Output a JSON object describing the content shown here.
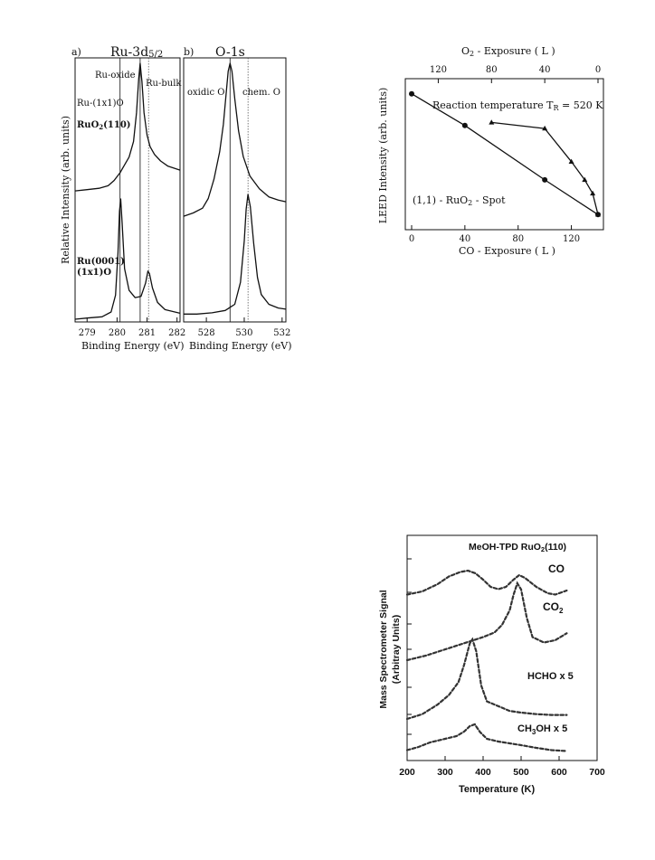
{
  "chart_data": [
    {
      "type": "line",
      "panel_label": "a)",
      "title": "Ru-3d",
      "title_sub": "5/2",
      "xlabel": "Binding Energy (eV)",
      "ylabel": "Relative Intensity (arb. units)",
      "xlim": [
        278.6,
        282.1
      ],
      "x_ticks": [
        "279",
        "280",
        "281",
        "282"
      ],
      "annotations": [
        "Ru-oxide",
        "Ru-bulk",
        "Ru-(1x1)O"
      ],
      "series": [
        {
          "name": "RuO",
          "name_sub": "2",
          "name_suffix": "(110)",
          "points": [
            [
              278.6,
              0.02
            ],
            [
              279.0,
              0.03
            ],
            [
              279.4,
              0.04
            ],
            [
              279.7,
              0.06
            ],
            [
              279.9,
              0.1
            ],
            [
              280.1,
              0.16
            ],
            [
              280.25,
              0.22
            ],
            [
              280.4,
              0.28
            ],
            [
              280.55,
              0.4
            ],
            [
              280.65,
              0.62
            ],
            [
              280.72,
              0.88
            ],
            [
              280.77,
              1.0
            ],
            [
              280.83,
              0.86
            ],
            [
              280.9,
              0.62
            ],
            [
              281.0,
              0.45
            ],
            [
              281.1,
              0.36
            ],
            [
              281.25,
              0.3
            ],
            [
              281.45,
              0.25
            ],
            [
              281.7,
              0.21
            ],
            [
              282.1,
              0.18
            ]
          ]
        },
        {
          "name": "Ru(0001)",
          "name_line2": "(1x1)O",
          "points": [
            [
              278.6,
              0.0
            ],
            [
              279.0,
              0.01
            ],
            [
              279.5,
              0.02
            ],
            [
              279.8,
              0.06
            ],
            [
              279.95,
              0.2
            ],
            [
              280.03,
              0.55
            ],
            [
              280.08,
              0.9
            ],
            [
              280.12,
              1.0
            ],
            [
              280.17,
              0.8
            ],
            [
              280.25,
              0.42
            ],
            [
              280.4,
              0.24
            ],
            [
              280.6,
              0.18
            ],
            [
              280.8,
              0.19
            ],
            [
              280.95,
              0.3
            ],
            [
              281.03,
              0.4
            ],
            [
              281.08,
              0.38
            ],
            [
              281.18,
              0.26
            ],
            [
              281.35,
              0.14
            ],
            [
              281.6,
              0.08
            ],
            [
              282.1,
              0.05
            ]
          ]
        }
      ]
    },
    {
      "type": "line",
      "panel_label": "b)",
      "title": "O-1s",
      "xlabel": "Binding Energy (eV)",
      "xlim": [
        526.8,
        532.2
      ],
      "x_ticks": [
        "528",
        "530",
        "532"
      ],
      "annotations": [
        "oxidic O",
        "chem. O"
      ],
      "series": [
        {
          "name": "RuO2(110)",
          "points": [
            [
              526.8,
              0.05
            ],
            [
              527.3,
              0.07
            ],
            [
              527.8,
              0.1
            ],
            [
              528.1,
              0.16
            ],
            [
              528.4,
              0.28
            ],
            [
              528.7,
              0.45
            ],
            [
              528.9,
              0.62
            ],
            [
              529.05,
              0.82
            ],
            [
              529.15,
              0.95
            ],
            [
              529.25,
              1.0
            ],
            [
              529.35,
              0.95
            ],
            [
              529.5,
              0.78
            ],
            [
              529.7,
              0.58
            ],
            [
              529.95,
              0.42
            ],
            [
              530.3,
              0.3
            ],
            [
              530.8,
              0.22
            ],
            [
              531.3,
              0.17
            ],
            [
              531.8,
              0.15
            ],
            [
              532.2,
              0.14
            ]
          ]
        },
        {
          "name": "Ru(0001)(1x1)O",
          "points": [
            [
              526.8,
              0.02
            ],
            [
              527.5,
              0.02
            ],
            [
              528.3,
              0.03
            ],
            [
              529.0,
              0.05
            ],
            [
              529.5,
              0.1
            ],
            [
              529.8,
              0.28
            ],
            [
              530.0,
              0.62
            ],
            [
              530.1,
              0.88
            ],
            [
              530.2,
              1.0
            ],
            [
              530.32,
              0.9
            ],
            [
              530.5,
              0.6
            ],
            [
              530.7,
              0.32
            ],
            [
              530.9,
              0.18
            ],
            [
              531.3,
              0.1
            ],
            [
              531.8,
              0.07
            ],
            [
              532.2,
              0.06
            ]
          ]
        }
      ]
    },
    {
      "type": "line",
      "xlabel": "CO - Exposure ( L )",
      "ylabel": "LEED Intensity (arb. units)",
      "xlabel_top": "O",
      "xlabel_top_sub": "2",
      "xlabel_top_suffix": " - Exposure ( L )",
      "xlim": [
        -5,
        150
      ],
      "x_ticks": [
        0,
        40,
        80,
        120
      ],
      "x_top_ticks": [
        120,
        80,
        40,
        0
      ],
      "ylim": [
        0,
        1
      ],
      "annotation_main": "Reaction temperature T",
      "annotation_main_sub": "R",
      "annotation_main_suffix": " = 520 K",
      "annotation_spot": "(1,1) - RuO",
      "annotation_spot_sub": "2",
      "annotation_spot_suffix": "  - Spot",
      "series": [
        {
          "name": "CO exposure",
          "marker": "circle",
          "points": [
            [
              0,
              0.9
            ],
            [
              40,
              0.69
            ],
            [
              100,
              0.33
            ],
            [
              140,
              0.1
            ]
          ]
        },
        {
          "name": "O2 exposure",
          "marker": "triangle",
          "points": [
            [
              60,
              0.71
            ],
            [
              100,
              0.67
            ],
            [
              120,
              0.45
            ],
            [
              130,
              0.33
            ],
            [
              136,
              0.24
            ],
            [
              140,
              0.1
            ]
          ]
        }
      ]
    },
    {
      "type": "line",
      "title": "MeOH-TPD RuO",
      "title_sub": "2",
      "title_suffix": "(110)",
      "xlabel": "Temperature (K)",
      "ylabel": "Mass Spectrometer Signal",
      "ylabel2": "(Arbitray Units)",
      "xlim": [
        200,
        700
      ],
      "x_ticks": [
        200,
        300,
        400,
        500,
        600,
        700
      ],
      "series": [
        {
          "name": "CO",
          "points": [
            [
              200,
              0.05
            ],
            [
              240,
              0.12
            ],
            [
              280,
              0.28
            ],
            [
              310,
              0.45
            ],
            [
              340,
              0.55
            ],
            [
              360,
              0.58
            ],
            [
              380,
              0.52
            ],
            [
              400,
              0.38
            ],
            [
              420,
              0.22
            ],
            [
              440,
              0.17
            ],
            [
              460,
              0.22
            ],
            [
              480,
              0.38
            ],
            [
              495,
              0.48
            ],
            [
              510,
              0.42
            ],
            [
              540,
              0.22
            ],
            [
              570,
              0.08
            ],
            [
              590,
              0.05
            ],
            [
              620,
              0.14
            ]
          ]
        },
        {
          "name": "CO",
          "name_sub": "2",
          "points": [
            [
              200,
              0.0
            ],
            [
              250,
              0.06
            ],
            [
              300,
              0.14
            ],
            [
              350,
              0.22
            ],
            [
              400,
              0.3
            ],
            [
              430,
              0.36
            ],
            [
              450,
              0.46
            ],
            [
              470,
              0.65
            ],
            [
              480,
              0.85
            ],
            [
              490,
              1.0
            ],
            [
              500,
              0.92
            ],
            [
              515,
              0.55
            ],
            [
              530,
              0.3
            ],
            [
              560,
              0.23
            ],
            [
              590,
              0.26
            ],
            [
              620,
              0.35
            ]
          ]
        },
        {
          "name": "HCHO x 5",
          "points": [
            [
              200,
              0.0
            ],
            [
              240,
              0.06
            ],
            [
              280,
              0.18
            ],
            [
              310,
              0.3
            ],
            [
              335,
              0.46
            ],
            [
              350,
              0.68
            ],
            [
              365,
              0.95
            ],
            [
              372,
              1.0
            ],
            [
              382,
              0.85
            ],
            [
              395,
              0.42
            ],
            [
              410,
              0.22
            ],
            [
              440,
              0.16
            ],
            [
              470,
              0.1
            ],
            [
              500,
              0.08
            ],
            [
              540,
              0.06
            ],
            [
              580,
              0.05
            ],
            [
              620,
              0.05
            ]
          ]
        },
        {
          "name": "CH",
          "name_sub": "3",
          "name_suffix": "OH x 5",
          "points": [
            [
              200,
              0.05
            ],
            [
              230,
              0.12
            ],
            [
              260,
              0.22
            ],
            [
              300,
              0.3
            ],
            [
              330,
              0.36
            ],
            [
              350,
              0.46
            ],
            [
              365,
              0.58
            ],
            [
              378,
              0.62
            ],
            [
              392,
              0.45
            ],
            [
              410,
              0.3
            ],
            [
              440,
              0.24
            ],
            [
              470,
              0.2
            ],
            [
              500,
              0.16
            ],
            [
              540,
              0.1
            ],
            [
              580,
              0.05
            ],
            [
              620,
              0.03
            ]
          ]
        }
      ]
    }
  ]
}
